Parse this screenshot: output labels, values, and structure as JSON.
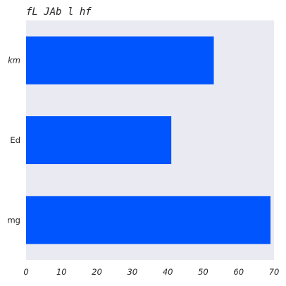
{
  "chart_data": {
    "type": "bar",
    "orientation": "horizontal",
    "title": "fL  JAb l hf",
    "categories": [
      "km",
      "Ed",
      "mg"
    ],
    "values": [
      53,
      41,
      69
    ],
    "xlim": [
      0,
      70
    ],
    "xticks": [
      0,
      10,
      20,
      30,
      40,
      50,
      60,
      70
    ],
    "grid": false,
    "legend": "none",
    "colors": {
      "bar": "#0055ff",
      "plot_background": "#eaeaf2"
    }
  }
}
